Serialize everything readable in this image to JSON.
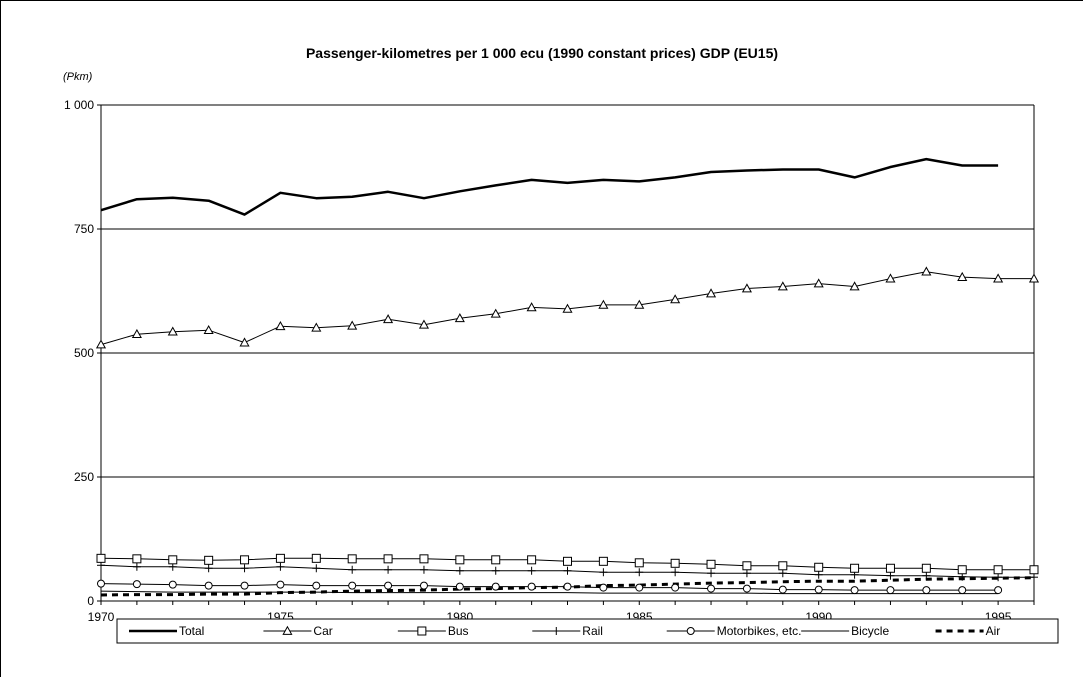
{
  "chart_data": {
    "type": "line",
    "title": "Passenger-kilometres per 1 000 ecu (1990 constant prices) GDP  (EU15)",
    "unit_label": "(Pkm)",
    "xlabel": "",
    "ylabel": "",
    "xlim": [
      1970,
      1996
    ],
    "ylim": [
      0,
      1000
    ],
    "x_ticks": [
      1970,
      1975,
      1980,
      1985,
      1990,
      1995
    ],
    "x_tick_labels": [
      "1970",
      "1975",
      "1980",
      "1985",
      "1990",
      "1995"
    ],
    "y_ticks": [
      0,
      250,
      500,
      750,
      1000
    ],
    "y_tick_labels": [
      "0",
      "250",
      "500",
      "750",
      "1 000"
    ],
    "grid": "horizontal",
    "legend_position": "bottom",
    "series": [
      {
        "name": "Total",
        "marker": "none",
        "line_style": "thick-solid",
        "color": "#000000",
        "x": [
          1970,
          1971,
          1972,
          1973,
          1974,
          1975,
          1976,
          1977,
          1978,
          1979,
          1980,
          1981,
          1982,
          1983,
          1984,
          1985,
          1986,
          1987,
          1988,
          1989,
          1990,
          1991,
          1992,
          1993,
          1994,
          1995
        ],
        "values": [
          788,
          810,
          813,
          807,
          779,
          823,
          812,
          815,
          825,
          812,
          826,
          838,
          849,
          843,
          849,
          846,
          854,
          865,
          868,
          870,
          870,
          854,
          875,
          891,
          878,
          878
        ]
      },
      {
        "name": "Car",
        "marker": "triangle",
        "line_style": "solid",
        "color": "#000000",
        "x": [
          1970,
          1971,
          1972,
          1973,
          1974,
          1975,
          1976,
          1977,
          1978,
          1979,
          1980,
          1981,
          1982,
          1983,
          1984,
          1985,
          1986,
          1987,
          1988,
          1989,
          1990,
          1991,
          1992,
          1993,
          1994,
          1995,
          1996
        ],
        "values": [
          517,
          538,
          543,
          546,
          521,
          554,
          551,
          555,
          568,
          557,
          570,
          579,
          592,
          589,
          597,
          597,
          608,
          620,
          630,
          634,
          640,
          634,
          650,
          664,
          653,
          650,
          650
        ]
      },
      {
        "name": "Bus",
        "marker": "square",
        "line_style": "solid",
        "color": "#000000",
        "x": [
          1970,
          1971,
          1972,
          1973,
          1974,
          1975,
          1976,
          1977,
          1978,
          1979,
          1980,
          1981,
          1982,
          1983,
          1984,
          1985,
          1986,
          1987,
          1988,
          1989,
          1990,
          1991,
          1992,
          1993,
          1994,
          1995,
          1996
        ],
        "values": [
          86,
          85,
          83,
          82,
          83,
          86,
          86,
          85,
          85,
          85,
          83,
          83,
          83,
          80,
          80,
          77,
          76,
          74,
          71,
          71,
          68,
          66,
          66,
          66,
          63,
          63,
          63
        ]
      },
      {
        "name": "Rail",
        "marker": "plus",
        "line_style": "solid",
        "color": "#000000",
        "x": [
          1970,
          1971,
          1972,
          1973,
          1974,
          1975,
          1976,
          1977,
          1978,
          1979,
          1980,
          1981,
          1982,
          1983,
          1984,
          1985,
          1986,
          1987,
          1988,
          1989,
          1990,
          1991,
          1992,
          1993,
          1994,
          1995,
          1996
        ],
        "values": [
          72,
          69,
          69,
          66,
          66,
          69,
          66,
          63,
          63,
          63,
          61,
          61,
          61,
          61,
          58,
          58,
          58,
          56,
          56,
          56,
          53,
          53,
          51,
          51,
          49,
          48,
          48
        ]
      },
      {
        "name": "Motorbikes, etc.",
        "marker": "circle",
        "line_style": "solid",
        "color": "#000000",
        "x": [
          1970,
          1971,
          1972,
          1973,
          1974,
          1975,
          1976,
          1977,
          1978,
          1979,
          1980,
          1981,
          1982,
          1983,
          1984,
          1985,
          1986,
          1987,
          1988,
          1989,
          1990,
          1991,
          1992,
          1993,
          1994,
          1995
        ],
        "values": [
          35,
          34,
          33,
          31,
          31,
          33,
          31,
          31,
          31,
          31,
          29,
          29,
          29,
          29,
          27,
          27,
          27,
          25,
          25,
          23,
          23,
          22,
          22,
          22,
          22,
          22
        ]
      },
      {
        "name": "Bicycle",
        "marker": "none",
        "line_style": "thin-solid",
        "color": "#000000",
        "x": [
          1970,
          1971,
          1972,
          1973,
          1974,
          1975,
          1976,
          1977,
          1978,
          1979,
          1980,
          1981,
          1982,
          1983,
          1984,
          1985,
          1986,
          1987,
          1988,
          1989,
          1990,
          1991,
          1992,
          1993,
          1994,
          1995
        ],
        "values": [
          20,
          19,
          18,
          18,
          18,
          18,
          18,
          17,
          17,
          17,
          17,
          17,
          17,
          17,
          16,
          16,
          16,
          16,
          16,
          15,
          15,
          15,
          15,
          15,
          15,
          15
        ]
      },
      {
        "name": "Air",
        "marker": "none",
        "line_style": "thick-dashed",
        "color": "#000000",
        "x": [
          1970,
          1971,
          1972,
          1973,
          1974,
          1975,
          1976,
          1977,
          1978,
          1979,
          1980,
          1981,
          1982,
          1983,
          1984,
          1985,
          1986,
          1987,
          1988,
          1989,
          1990,
          1991,
          1992,
          1993,
          1994,
          1995,
          1996
        ],
        "values": [
          12,
          13,
          13,
          14,
          14,
          17,
          18,
          20,
          21,
          22,
          24,
          25,
          27,
          28,
          31,
          32,
          34,
          36,
          37,
          39,
          40,
          40,
          42,
          44,
          45,
          46,
          47
        ]
      }
    ]
  }
}
